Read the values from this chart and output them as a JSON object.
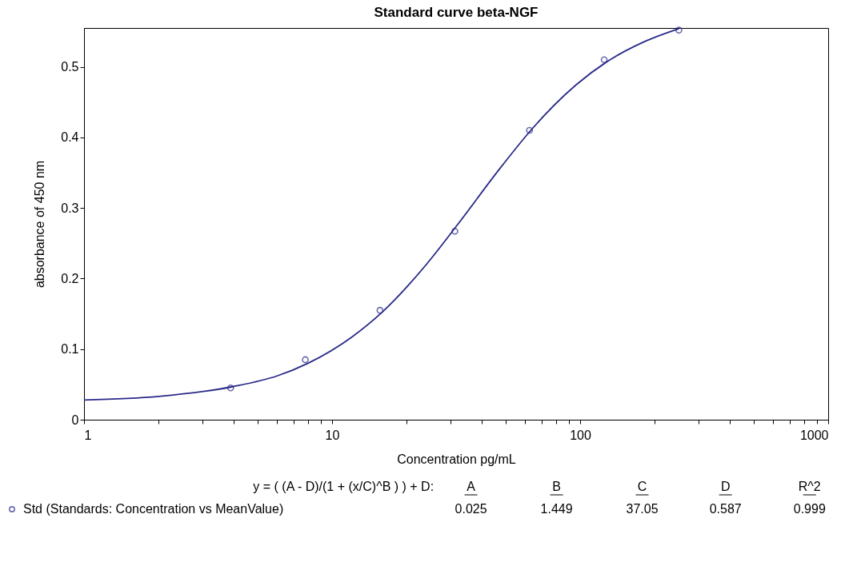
{
  "chart_data": {
    "type": "scatter",
    "title": "Standard curve beta-NGF",
    "xlabel": "Concentration  pg/mL",
    "ylabel": "absorbance of 450 nm",
    "log": "x",
    "grid": false,
    "legend": "bottom left",
    "xlim": [
      1,
      1000
    ],
    "ylim": [
      0,
      0.555
    ],
    "xticks": [
      1,
      {
        "value": 2,
        "label": null
      },
      {
        "value": 3,
        "label": null
      },
      {
        "value": 4,
        "label": null
      },
      {
        "value": 5,
        "label": null
      },
      {
        "value": 6,
        "label": null
      },
      {
        "value": 7,
        "label": null
      },
      {
        "value": 8,
        "label": null
      },
      {
        "value": 9,
        "label": null
      },
      10,
      {
        "value": 20,
        "label": null
      },
      {
        "value": 30,
        "label": null
      },
      {
        "value": 40,
        "label": null
      },
      {
        "value": 50,
        "label": null
      },
      {
        "value": 60,
        "label": null
      },
      {
        "value": 70,
        "label": null
      },
      {
        "value": 80,
        "label": null
      },
      {
        "value": 90,
        "label": null
      },
      100,
      {
        "value": 200,
        "label": null
      },
      {
        "value": 300,
        "label": null
      },
      {
        "value": 400,
        "label": null
      },
      {
        "value": 500,
        "label": null
      },
      {
        "value": 600,
        "label": null
      },
      {
        "value": 700,
        "label": null
      },
      {
        "value": 800,
        "label": null
      },
      {
        "value": 900,
        "label": null
      },
      1000
    ],
    "yticks": [
      0,
      0.1,
      0.2,
      0.3,
      0.4,
      0.5
    ],
    "series": [
      {
        "name": "Std (Standards: Concentration vs MeanValue)",
        "marker": "circle",
        "color": "#2a2a8a",
        "x": [
          3.9,
          7.8,
          15.6,
          31.25,
          62.5,
          125,
          250
        ],
        "values": [
          0.045,
          0.085,
          0.155,
          0.267,
          0.41,
          0.51,
          0.552
        ]
      },
      {
        "type": "line",
        "marker": "none",
        "color": "#2a2a8a",
        "line_style": "solid",
        "x": [
          1,
          2,
          4,
          6,
          8,
          12,
          16,
          24,
          32,
          48,
          64,
          96,
          128,
          180,
          250
        ],
        "values": [
          0.028,
          0.033,
          0.047,
          0.062,
          0.08,
          0.117,
          0.153,
          0.22,
          0.276,
          0.358,
          0.412,
          0.474,
          0.507,
          0.535,
          0.554
        ]
      }
    ],
    "annotations": [
      "y = ( (A - D)/(1 + (x/C)^B ) ) + D:",
      "A",
      "B",
      "C",
      "D",
      "R^2",
      "0.025",
      "1.449",
      "37.05",
      "0.587",
      "0.999"
    ]
  }
}
